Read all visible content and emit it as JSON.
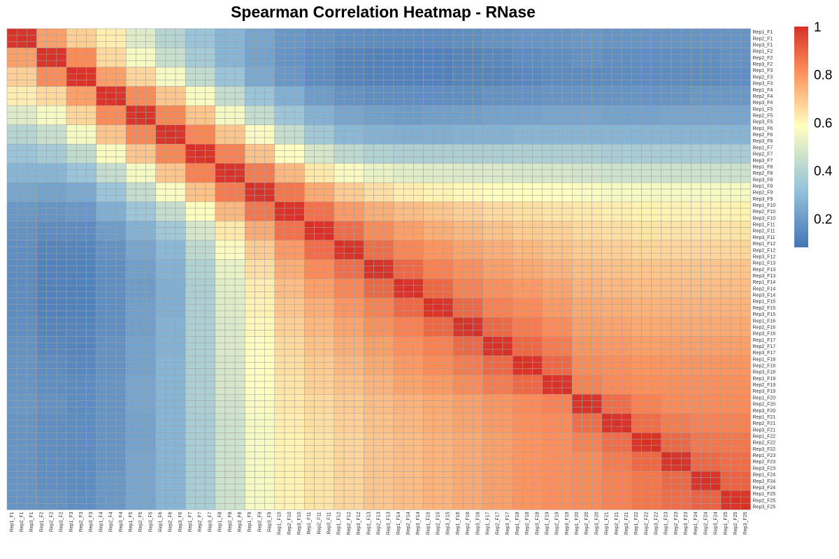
{
  "chart_data": {
    "type": "heatmap",
    "title": "Spearman Correlation Heatmap - RNase",
    "replicates": [
      "Rep1",
      "Rep2",
      "Rep3"
    ],
    "fractions": [
      "F1",
      "F2",
      "F3",
      "F4",
      "F5",
      "F6",
      "F7",
      "F8",
      "F9",
      "F10",
      "F11",
      "F12",
      "F13",
      "F14",
      "F15",
      "F16",
      "F17",
      "F18",
      "F19",
      "F20",
      "F21",
      "F22",
      "F23",
      "F24",
      "F25"
    ],
    "labels": [
      "Rep1_F1",
      "Rep2_F1",
      "Rep3_F1",
      "Rep1_F2",
      "Rep2_F2",
      "Rep3_F2",
      "Rep1_F3",
      "Rep2_F3",
      "Rep3_F3",
      "Rep1_F4",
      "Rep2_F4",
      "Rep3_F4",
      "Rep1_F5",
      "Rep2_F5",
      "Rep3_F5",
      "Rep1_F6",
      "Rep2_F6",
      "Rep3_F6",
      "Rep1_F7",
      "Rep2_F7",
      "Rep3_F7",
      "Rep1_F8",
      "Rep2_F8",
      "Rep3_F8",
      "Rep1_F9",
      "Rep2_F9",
      "Rep3_F9",
      "Rep1_F10",
      "Rep2_F10",
      "Rep3_F10",
      "Rep1_F11",
      "Rep2_F11",
      "Rep3_F11",
      "Rep1_F12",
      "Rep2_F12",
      "Rep3_F12",
      "Rep1_F13",
      "Rep2_F13",
      "Rep3_F13",
      "Rep1_F14",
      "Rep2_F14",
      "Rep3_F14",
      "Rep1_F15",
      "Rep2_F15",
      "Rep3_F15",
      "Rep1_F16",
      "Rep2_F16",
      "Rep3_F16",
      "Rep1_F17",
      "Rep2_F17",
      "Rep3_F17",
      "Rep1_F18",
      "Rep2_F18",
      "Rep3_F18",
      "Rep1_F19",
      "Rep2_F19",
      "Rep3_F19",
      "Rep1_F20",
      "Rep2_F20",
      "Rep3_F20",
      "Rep1_F21",
      "Rep2_F21",
      "Rep3_F21",
      "Rep1_F22",
      "Rep2_F22",
      "Rep3_F22",
      "Rep1_F23",
      "Rep2_F23",
      "Rep3_F23",
      "Rep1_F24",
      "Rep2_F24",
      "Rep3_F24",
      "Rep1_F25",
      "Rep2_F25",
      "Rep3_F25"
    ],
    "fraction_correlation_matrix": [
      [
        1.0,
        0.78,
        0.68,
        0.62,
        0.5,
        0.4,
        0.33,
        0.28,
        0.23,
        0.19,
        0.17,
        0.16,
        0.15,
        0.15,
        0.15,
        0.16,
        0.17,
        0.18,
        0.18,
        0.19,
        0.18,
        0.18,
        0.18,
        0.18,
        0.18
      ],
      [
        0.78,
        1.0,
        0.82,
        0.66,
        0.56,
        0.45,
        0.36,
        0.28,
        0.22,
        0.18,
        0.15,
        0.13,
        0.12,
        0.12,
        0.12,
        0.13,
        0.14,
        0.15,
        0.16,
        0.17,
        0.16,
        0.16,
        0.16,
        0.16,
        0.17
      ],
      [
        0.68,
        0.82,
        1.0,
        0.78,
        0.67,
        0.56,
        0.43,
        0.33,
        0.24,
        0.19,
        0.15,
        0.13,
        0.12,
        0.12,
        0.12,
        0.13,
        0.13,
        0.14,
        0.15,
        0.15,
        0.15,
        0.15,
        0.15,
        0.15,
        0.16
      ],
      [
        0.62,
        0.66,
        0.78,
        1.0,
        0.82,
        0.7,
        0.57,
        0.44,
        0.33,
        0.26,
        0.2,
        0.17,
        0.16,
        0.16,
        0.16,
        0.16,
        0.17,
        0.17,
        0.18,
        0.18,
        0.18,
        0.18,
        0.18,
        0.19,
        0.19
      ],
      [
        0.5,
        0.56,
        0.67,
        0.82,
        1.0,
        0.83,
        0.7,
        0.56,
        0.44,
        0.34,
        0.27,
        0.23,
        0.21,
        0.2,
        0.21,
        0.21,
        0.22,
        0.22,
        0.23,
        0.23,
        0.22,
        0.22,
        0.23,
        0.23,
        0.23
      ],
      [
        0.4,
        0.45,
        0.56,
        0.7,
        0.83,
        1.0,
        0.83,
        0.7,
        0.57,
        0.44,
        0.35,
        0.29,
        0.27,
        0.26,
        0.26,
        0.27,
        0.27,
        0.28,
        0.28,
        0.28,
        0.28,
        0.28,
        0.28,
        0.28,
        0.28
      ],
      [
        0.33,
        0.36,
        0.43,
        0.57,
        0.7,
        0.83,
        1.0,
        0.84,
        0.71,
        0.58,
        0.48,
        0.42,
        0.39,
        0.38,
        0.38,
        0.38,
        0.38,
        0.38,
        0.38,
        0.38,
        0.37,
        0.37,
        0.37,
        0.37,
        0.37
      ],
      [
        0.28,
        0.28,
        0.33,
        0.44,
        0.56,
        0.7,
        0.84,
        1.0,
        0.85,
        0.73,
        0.63,
        0.57,
        0.53,
        0.51,
        0.5,
        0.49,
        0.49,
        0.48,
        0.48,
        0.47,
        0.46,
        0.46,
        0.46,
        0.46,
        0.46
      ],
      [
        0.23,
        0.22,
        0.24,
        0.33,
        0.44,
        0.57,
        0.71,
        0.85,
        1.0,
        0.86,
        0.76,
        0.69,
        0.65,
        0.62,
        0.61,
        0.6,
        0.59,
        0.58,
        0.58,
        0.57,
        0.56,
        0.56,
        0.56,
        0.56,
        0.56
      ],
      [
        0.19,
        0.18,
        0.19,
        0.26,
        0.34,
        0.44,
        0.58,
        0.73,
        0.86,
        1.0,
        0.87,
        0.79,
        0.75,
        0.72,
        0.7,
        0.68,
        0.66,
        0.65,
        0.64,
        0.63,
        0.62,
        0.61,
        0.61,
        0.61,
        0.61
      ],
      [
        0.17,
        0.15,
        0.15,
        0.2,
        0.27,
        0.35,
        0.48,
        0.63,
        0.76,
        0.87,
        1.0,
        0.88,
        0.82,
        0.78,
        0.75,
        0.73,
        0.71,
        0.69,
        0.68,
        0.66,
        0.65,
        0.64,
        0.64,
        0.64,
        0.64
      ],
      [
        0.16,
        0.13,
        0.13,
        0.17,
        0.23,
        0.29,
        0.42,
        0.57,
        0.69,
        0.79,
        0.88,
        1.0,
        0.88,
        0.83,
        0.8,
        0.77,
        0.75,
        0.73,
        0.71,
        0.69,
        0.68,
        0.67,
        0.67,
        0.67,
        0.67
      ],
      [
        0.15,
        0.12,
        0.12,
        0.16,
        0.21,
        0.27,
        0.39,
        0.53,
        0.65,
        0.75,
        0.82,
        0.88,
        1.0,
        0.89,
        0.84,
        0.81,
        0.78,
        0.76,
        0.74,
        0.72,
        0.71,
        0.7,
        0.7,
        0.7,
        0.7
      ],
      [
        0.15,
        0.12,
        0.12,
        0.16,
        0.2,
        0.26,
        0.38,
        0.51,
        0.62,
        0.72,
        0.78,
        0.83,
        0.89,
        1.0,
        0.89,
        0.84,
        0.81,
        0.79,
        0.77,
        0.74,
        0.73,
        0.72,
        0.72,
        0.72,
        0.72
      ],
      [
        0.15,
        0.12,
        0.12,
        0.16,
        0.21,
        0.26,
        0.38,
        0.5,
        0.61,
        0.7,
        0.75,
        0.8,
        0.84,
        0.89,
        1.0,
        0.89,
        0.84,
        0.82,
        0.79,
        0.76,
        0.75,
        0.74,
        0.74,
        0.74,
        0.74
      ],
      [
        0.16,
        0.13,
        0.13,
        0.16,
        0.21,
        0.27,
        0.38,
        0.49,
        0.6,
        0.68,
        0.73,
        0.77,
        0.81,
        0.84,
        0.89,
        1.0,
        0.89,
        0.85,
        0.82,
        0.78,
        0.77,
        0.76,
        0.76,
        0.76,
        0.76
      ],
      [
        0.17,
        0.14,
        0.13,
        0.17,
        0.22,
        0.27,
        0.38,
        0.49,
        0.59,
        0.66,
        0.71,
        0.75,
        0.78,
        0.81,
        0.84,
        0.89,
        1.0,
        0.89,
        0.85,
        0.8,
        0.79,
        0.78,
        0.78,
        0.78,
        0.78
      ],
      [
        0.18,
        0.15,
        0.14,
        0.17,
        0.22,
        0.28,
        0.38,
        0.48,
        0.58,
        0.65,
        0.69,
        0.73,
        0.76,
        0.79,
        0.82,
        0.85,
        0.89,
        1.0,
        0.89,
        0.82,
        0.81,
        0.8,
        0.8,
        0.8,
        0.8
      ],
      [
        0.18,
        0.16,
        0.15,
        0.18,
        0.23,
        0.28,
        0.38,
        0.48,
        0.58,
        0.64,
        0.68,
        0.71,
        0.74,
        0.77,
        0.79,
        0.82,
        0.85,
        0.89,
        1.0,
        0.84,
        0.82,
        0.81,
        0.81,
        0.81,
        0.81
      ],
      [
        0.19,
        0.17,
        0.15,
        0.18,
        0.23,
        0.28,
        0.38,
        0.47,
        0.57,
        0.63,
        0.66,
        0.69,
        0.72,
        0.74,
        0.76,
        0.78,
        0.8,
        0.82,
        0.84,
        1.0,
        0.88,
        0.84,
        0.82,
        0.82,
        0.82
      ],
      [
        0.18,
        0.16,
        0.15,
        0.18,
        0.22,
        0.28,
        0.37,
        0.46,
        0.56,
        0.62,
        0.65,
        0.68,
        0.71,
        0.73,
        0.75,
        0.77,
        0.79,
        0.81,
        0.82,
        0.88,
        1.0,
        0.88,
        0.85,
        0.84,
        0.84
      ],
      [
        0.18,
        0.16,
        0.15,
        0.18,
        0.22,
        0.28,
        0.37,
        0.46,
        0.56,
        0.61,
        0.64,
        0.67,
        0.7,
        0.72,
        0.74,
        0.76,
        0.78,
        0.8,
        0.81,
        0.84,
        0.88,
        1.0,
        0.89,
        0.86,
        0.86
      ],
      [
        0.18,
        0.16,
        0.15,
        0.18,
        0.23,
        0.28,
        0.37,
        0.46,
        0.56,
        0.61,
        0.64,
        0.67,
        0.7,
        0.72,
        0.74,
        0.76,
        0.78,
        0.8,
        0.81,
        0.82,
        0.85,
        0.89,
        1.0,
        0.89,
        0.88
      ],
      [
        0.18,
        0.16,
        0.15,
        0.19,
        0.23,
        0.28,
        0.37,
        0.46,
        0.56,
        0.61,
        0.64,
        0.67,
        0.7,
        0.72,
        0.74,
        0.76,
        0.78,
        0.8,
        0.81,
        0.82,
        0.84,
        0.86,
        0.89,
        1.0,
        0.9
      ],
      [
        0.18,
        0.17,
        0.16,
        0.19,
        0.23,
        0.28,
        0.37,
        0.46,
        0.56,
        0.61,
        0.64,
        0.67,
        0.7,
        0.72,
        0.74,
        0.76,
        0.78,
        0.8,
        0.81,
        0.82,
        0.84,
        0.86,
        0.88,
        0.9,
        1.0
      ]
    ],
    "value_range": [
      0.08,
      1.0
    ],
    "legend": {
      "ticks": [
        0.2,
        0.4,
        0.6,
        0.8,
        1
      ],
      "tick_labels": [
        "0.2",
        "0.4",
        "0.6",
        "0.8",
        "1"
      ],
      "placement": "right"
    },
    "colors": {
      "low": "#4575b4",
      "mid_low": "#91bfdb",
      "mid": "#ffffbf",
      "mid_high": "#fc8d59",
      "high": "#d73027",
      "grid": "#a0a0a0"
    }
  }
}
